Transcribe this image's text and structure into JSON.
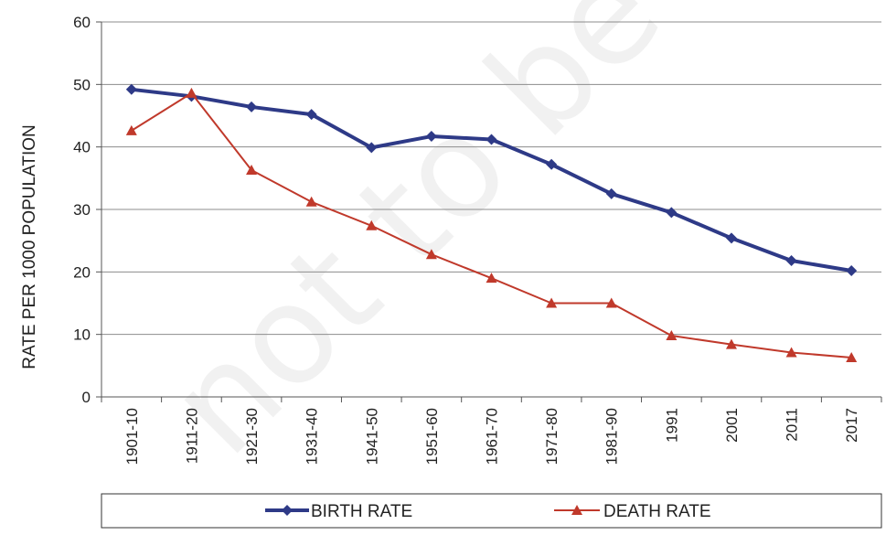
{
  "chart_data": {
    "type": "line",
    "title": "",
    "xlabel": "",
    "ylabel": "RATE PER 1000 POPULATION",
    "ylim": [
      0,
      60
    ],
    "yticks": [
      "0",
      "10",
      "20",
      "30",
      "40",
      "50",
      "60"
    ],
    "grid": "horizontal",
    "legend_position": "bottom",
    "categories": [
      "1901-10",
      "1911-20",
      "1921-30",
      "1931-40",
      "1941-50",
      "1951-60",
      "1961-70",
      "1971-80",
      "1981-90",
      "1991",
      "2001",
      "2011",
      "2017"
    ],
    "series": [
      {
        "name": "BIRTH RATE",
        "color": "#2E3A87",
        "marker": "diamond",
        "values": [
          49.2,
          48.1,
          46.4,
          45.2,
          39.9,
          41.7,
          41.2,
          37.2,
          32.5,
          29.5,
          25.4,
          21.8,
          20.2
        ]
      },
      {
        "name": "DEATH RATE",
        "color": "#C0392B",
        "marker": "triangle",
        "values": [
          42.6,
          48.6,
          36.3,
          31.2,
          27.4,
          22.8,
          19.0,
          15.0,
          15.0,
          9.8,
          8.4,
          7.1,
          6.3
        ]
      }
    ],
    "watermark": "not to be re"
  }
}
